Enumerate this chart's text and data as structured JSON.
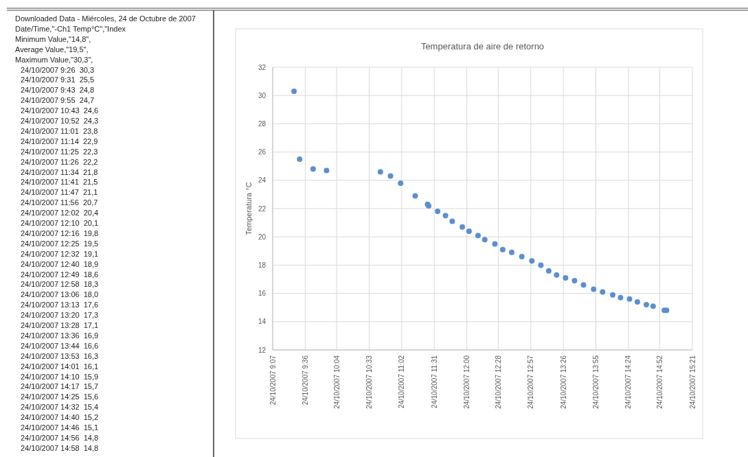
{
  "chart_data": {
    "type": "scatter",
    "title": "Temperatura de aire de retorno",
    "ylabel": "Temperatura °C",
    "annotations": [
      "Downloaded Data - Miércoles, 24 de Octubre de 2007",
      "Date/Time,\"-Ch1 Temp°C\",\"Index",
      "Minimum Value,\"14,8\",",
      "Average Value,\"19,5\",",
      "Maximum Value,\"30,3\",",
      "24/10/2007 9:26  30,3",
      "24/10/2007 9:31  25,5",
      "24/10/2007 9:43  24,8",
      "24/10/2007 9:55  24,7",
      "24/10/2007 10:43  24,6",
      "24/10/2007 10:52  24,3",
      "24/10/2007 11:01  23,8",
      "24/10/2007 11:14  22,9",
      "24/10/2007 11:25  22,3",
      "24/10/2007 11:26  22,2",
      "24/10/2007 11:34  21,8",
      "24/10/2007 11:41  21,5",
      "24/10/2007 11:47  21,1",
      "24/10/2007 11:56  20,7",
      "24/10/2007 12:02  20,4",
      "24/10/2007 12:10  20,1",
      "24/10/2007 12:16  19,8",
      "24/10/2007 12:25  19,5",
      "24/10/2007 12:32  19,1",
      "24/10/2007 12:40  18,9",
      "24/10/2007 12:49  18,6",
      "24/10/2007 12:58  18,3",
      "24/10/2007 13:06  18,0",
      "24/10/2007 13:13  17,6",
      "24/10/2007 13:20  17,3",
      "24/10/2007 13:28  17,1",
      "24/10/2007 13:36  16,9",
      "24/10/2007 13:44  16,6",
      "24/10/2007 13:53  16,3",
      "24/10/2007 14:01  16,1",
      "24/10/2007 14:10  15,9",
      "24/10/2007 14:17  15,7",
      "24/10/2007 14:25  15,6",
      "24/10/2007 14:32  15,4",
      "24/10/2007 14:40  15,2",
      "24/10/2007 14:46  15,1",
      "24/10/2007 14:56  14,8",
      "24/10/2007 14:58  14,8"
    ],
    "x": [
      "2007-10-24T09:26",
      "2007-10-24T09:31",
      "2007-10-24T09:43",
      "2007-10-24T09:55",
      "2007-10-24T10:43",
      "2007-10-24T10:52",
      "2007-10-24T11:01",
      "2007-10-24T11:14",
      "2007-10-24T11:25",
      "2007-10-24T11:26",
      "2007-10-24T11:34",
      "2007-10-24T11:41",
      "2007-10-24T11:47",
      "2007-10-24T11:56",
      "2007-10-24T12:02",
      "2007-10-24T12:10",
      "2007-10-24T12:16",
      "2007-10-24T12:25",
      "2007-10-24T12:32",
      "2007-10-24T12:40",
      "2007-10-24T12:49",
      "2007-10-24T12:58",
      "2007-10-24T13:06",
      "2007-10-24T13:13",
      "2007-10-24T13:20",
      "2007-10-24T13:28",
      "2007-10-24T13:36",
      "2007-10-24T13:44",
      "2007-10-24T13:53",
      "2007-10-24T14:01",
      "2007-10-24T14:10",
      "2007-10-24T14:17",
      "2007-10-24T14:25",
      "2007-10-24T14:32",
      "2007-10-24T14:40",
      "2007-10-24T14:46",
      "2007-10-24T14:56",
      "2007-10-24T14:58"
    ],
    "series": [
      {
        "color": "#5b8fcf",
        "values": [
          30.3,
          25.5,
          24.8,
          24.7,
          24.6,
          24.3,
          23.8,
          22.9,
          22.3,
          22.2,
          21.8,
          21.5,
          21.1,
          20.7,
          20.4,
          20.1,
          19.8,
          19.5,
          19.1,
          18.9,
          18.6,
          18.3,
          18.0,
          17.6,
          17.3,
          17.1,
          16.9,
          16.6,
          16.3,
          16.1,
          15.9,
          15.7,
          15.6,
          15.4,
          15.2,
          15.1,
          14.8,
          14.8
        ]
      }
    ],
    "xlim": [
      "2007-10-24T09:07",
      "2007-10-24T15:21"
    ],
    "xticks": [
      {
        "value": "2007-10-24T09:07",
        "label": "24/10/2007 9:07"
      },
      {
        "value": "2007-10-24T09:36",
        "label": "24/10/2007 9:36"
      },
      {
        "value": "2007-10-24T10:04",
        "label": "24/10/2007 10:04"
      },
      {
        "value": "2007-10-24T10:33",
        "label": "24/10/2007 10:33"
      },
      {
        "value": "2007-10-24T11:02",
        "label": "24/10/2007 11:02"
      },
      {
        "value": "2007-10-24T11:31",
        "label": "24/10/2007 11:31"
      },
      {
        "value": "2007-10-24T12:00",
        "label": "24/10/2007 12:00"
      },
      {
        "value": "2007-10-24T12:28",
        "label": "24/10/2007 12:28"
      },
      {
        "value": "2007-10-24T12:57",
        "label": "24/10/2007 12:57"
      },
      {
        "value": "2007-10-24T13:26",
        "label": "24/10/2007 13:26"
      },
      {
        "value": "2007-10-24T13:55",
        "label": "24/10/2007 13:55"
      },
      {
        "value": "2007-10-24T14:24",
        "label": "24/10/2007 14:24"
      },
      {
        "value": "2007-10-24T14:52",
        "label": "24/10/2007 14:52"
      },
      {
        "value": "2007-10-24T15:21",
        "label": "24/10/2007 15:21"
      }
    ],
    "ylim": [
      12,
      32
    ],
    "yticks": [
      12,
      14,
      16,
      18,
      20,
      22,
      24,
      26,
      28,
      30,
      32
    ],
    "grid": true,
    "marker": "circle"
  }
}
